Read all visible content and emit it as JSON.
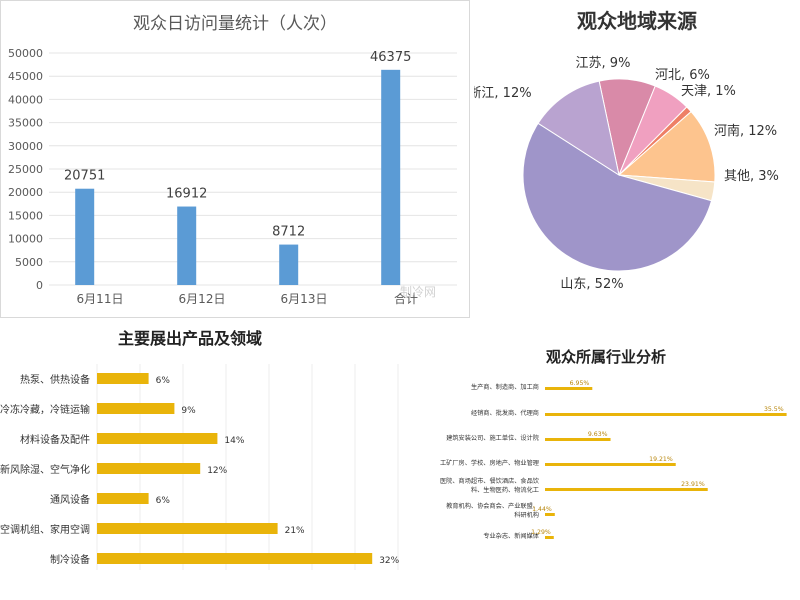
{
  "chart_data": [
    {
      "id": "daily",
      "type": "bar",
      "title": "观众日访问量统计（人次）",
      "categories": [
        "6月11日",
        "6月12日",
        "6月13日",
        "合计"
      ],
      "values": [
        20751,
        16912,
        8712,
        46375
      ],
      "yticks": [
        0,
        5000,
        10000,
        15000,
        20000,
        25000,
        30000,
        35000,
        40000,
        45000,
        50000
      ],
      "ylim": [
        0,
        50000
      ],
      "color": "#5b9bd5"
    },
    {
      "id": "region",
      "type": "pie",
      "title": "观众地域来源",
      "slices": [
        {
          "label": "江苏",
          "value": 9,
          "color": "#d98aa8"
        },
        {
          "label": "河北",
          "value": 6,
          "color": "#f0a0c0"
        },
        {
          "label": "天津",
          "value": 1,
          "color": "#ee7f66"
        },
        {
          "label": "河南",
          "value": 12,
          "color": "#fdc48e"
        },
        {
          "label": "其他",
          "value": 3,
          "color": "#f6e4c7"
        },
        {
          "label": "山东",
          "value": 52,
          "color": "#9f95c9"
        },
        {
          "label": "浙江",
          "value": 12,
          "color": "#b9a3d0"
        }
      ]
    },
    {
      "id": "exhibit",
      "type": "bar",
      "orientation": "horizontal",
      "title": "主要展出产品及领域",
      "categories": [
        "热泵、供热设备",
        "冷冻冷藏，冷链运输",
        "材料设备及配件",
        "新风除湿、空气净化",
        "通风设备",
        "空调机组、家用空调",
        "制冷设备"
      ],
      "values": [
        6,
        9,
        14,
        12,
        6,
        21,
        32
      ],
      "labels": [
        "6%",
        "9%",
        "14%",
        "12%",
        "6%",
        "21%",
        "32%"
      ],
      "xlim": [
        0,
        35
      ],
      "color": "#e9b40a"
    },
    {
      "id": "industry",
      "type": "bar",
      "orientation": "horizontal",
      "title": "观众所属行业分析",
      "categories": [
        "生产商、制造商、加工商",
        "经销商、批发商、代理商",
        "建筑安装公司、施工单位、设计院",
        "工矿厂房、学校、房地产、物业管理",
        "医院、商场超市、餐饮酒店、食品饮料、生物医药、物流化工",
        "教育机构、协会商会、产业联盟、科研机构",
        "专业杂志、新闻媒体"
      ],
      "values": [
        6.95,
        35.5,
        9.63,
        19.21,
        23.91,
        1.44,
        1.29
      ],
      "labels": [
        "6.95%",
        "35.5%",
        "9.63%",
        "19.21%",
        "23.91%",
        "1.44%",
        "1.29%"
      ],
      "xlim": [
        0,
        36
      ],
      "color": "#e9b40a"
    }
  ],
  "watermark": "制冷网"
}
